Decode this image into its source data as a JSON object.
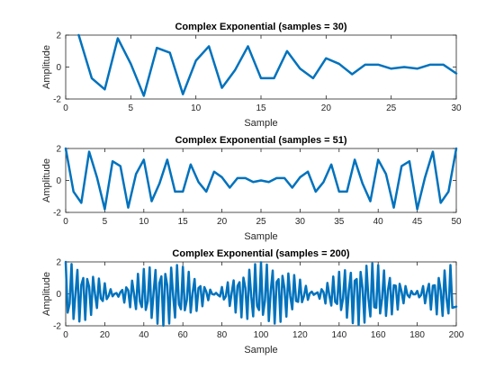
{
  "chart_data": [
    {
      "type": "line",
      "title": "Complex Exponential (samples = 30)",
      "xlabel": "Sample",
      "ylabel": "Amplitude",
      "xlim": [
        0,
        30
      ],
      "ylim": [
        -2,
        2
      ],
      "xticks": [
        0,
        5,
        10,
        15,
        20,
        25,
        30
      ],
      "yticks": [
        -2,
        0,
        2
      ],
      "grid": false,
      "color": "#0072BD",
      "x": [
        1,
        2,
        3,
        4,
        5,
        6,
        7,
        8,
        9,
        10,
        11,
        12,
        13,
        14,
        15,
        16,
        17,
        18,
        19,
        20,
        21,
        22,
        23,
        24,
        25,
        26,
        27,
        28,
        29,
        30
      ],
      "y": [
        2.0,
        -0.7,
        -1.4,
        1.8,
        0.2,
        -1.8,
        1.2,
        0.9,
        -1.7,
        0.4,
        1.3,
        -1.3,
        -0.2,
        1.3,
        -0.7,
        -0.7,
        1.0,
        -0.1,
        -0.7,
        0.55,
        0.2,
        -0.45,
        0.15,
        0.15,
        -0.1,
        0.0,
        -0.1,
        0.15,
        0.15,
        -0.4
      ]
    },
    {
      "type": "line",
      "title": "Complex Exponential (samples = 51)",
      "xlabel": "Sample",
      "ylabel": "Amplitude",
      "xlim": [
        0,
        50
      ],
      "ylim": [
        -2,
        2
      ],
      "xticks": [
        0,
        5,
        10,
        15,
        20,
        25,
        30,
        35,
        40,
        45,
        50
      ],
      "yticks": [
        -2,
        0,
        2
      ],
      "grid": false,
      "color": "#0072BD",
      "x": [
        0,
        1,
        2,
        3,
        4,
        5,
        6,
        7,
        8,
        9,
        10,
        11,
        12,
        13,
        14,
        15,
        16,
        17,
        18,
        19,
        20,
        21,
        22,
        23,
        24,
        25,
        26,
        27,
        28,
        29,
        30,
        31,
        32,
        33,
        34,
        35,
        36,
        37,
        38,
        39,
        40,
        41,
        42,
        43,
        44,
        45,
        46,
        47,
        48,
        49,
        50
      ],
      "y": [
        2.0,
        -0.7,
        -1.4,
        1.8,
        0.2,
        -1.8,
        1.2,
        0.9,
        -1.7,
        0.4,
        1.3,
        -1.3,
        -0.2,
        1.3,
        -0.7,
        -0.7,
        1.0,
        -0.1,
        -0.7,
        0.55,
        0.2,
        -0.45,
        0.15,
        0.15,
        -0.1,
        0.0,
        -0.1,
        0.15,
        0.15,
        -0.45,
        0.2,
        0.55,
        -0.7,
        -0.1,
        1.0,
        -0.7,
        -0.7,
        1.3,
        -0.2,
        -1.3,
        1.3,
        0.4,
        -1.7,
        0.9,
        1.2,
        -1.8,
        0.2,
        1.8,
        -1.4,
        -0.7,
        2.0
      ]
    },
    {
      "type": "line",
      "title": "Complex Exponential (samples = 200)",
      "xlabel": "Sample",
      "ylabel": "Amplitude",
      "xlim": [
        0,
        200
      ],
      "ylim": [
        -2,
        2
      ],
      "xticks": [
        0,
        20,
        40,
        60,
        80,
        100,
        120,
        140,
        160,
        180,
        200
      ],
      "yticks": [
        -2,
        0,
        2
      ],
      "grid": false,
      "color": "#0072BD",
      "x": [
        0,
        200
      ],
      "y": [
        2.0,
        -0.8
      ]
    }
  ]
}
